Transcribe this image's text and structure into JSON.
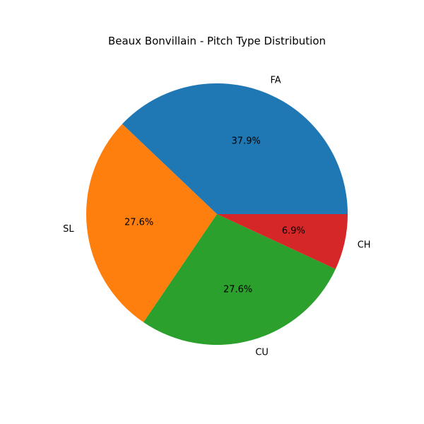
{
  "chart_data": {
    "type": "pie",
    "title": "Beaux Bonvillain - Pitch Type Distribution",
    "categories": [
      "FA",
      "SL",
      "CU",
      "CH"
    ],
    "values": [
      37.9,
      27.6,
      27.6,
      6.9
    ],
    "percent_labels": [
      "37.9%",
      "27.6%",
      "27.6%",
      "6.9%"
    ],
    "colors": [
      "#1f77b4",
      "#ff7f0e",
      "#2ca02c",
      "#d62728"
    ],
    "start_angle_deg": 0,
    "direction": "counterclockwise",
    "legend": "none"
  }
}
